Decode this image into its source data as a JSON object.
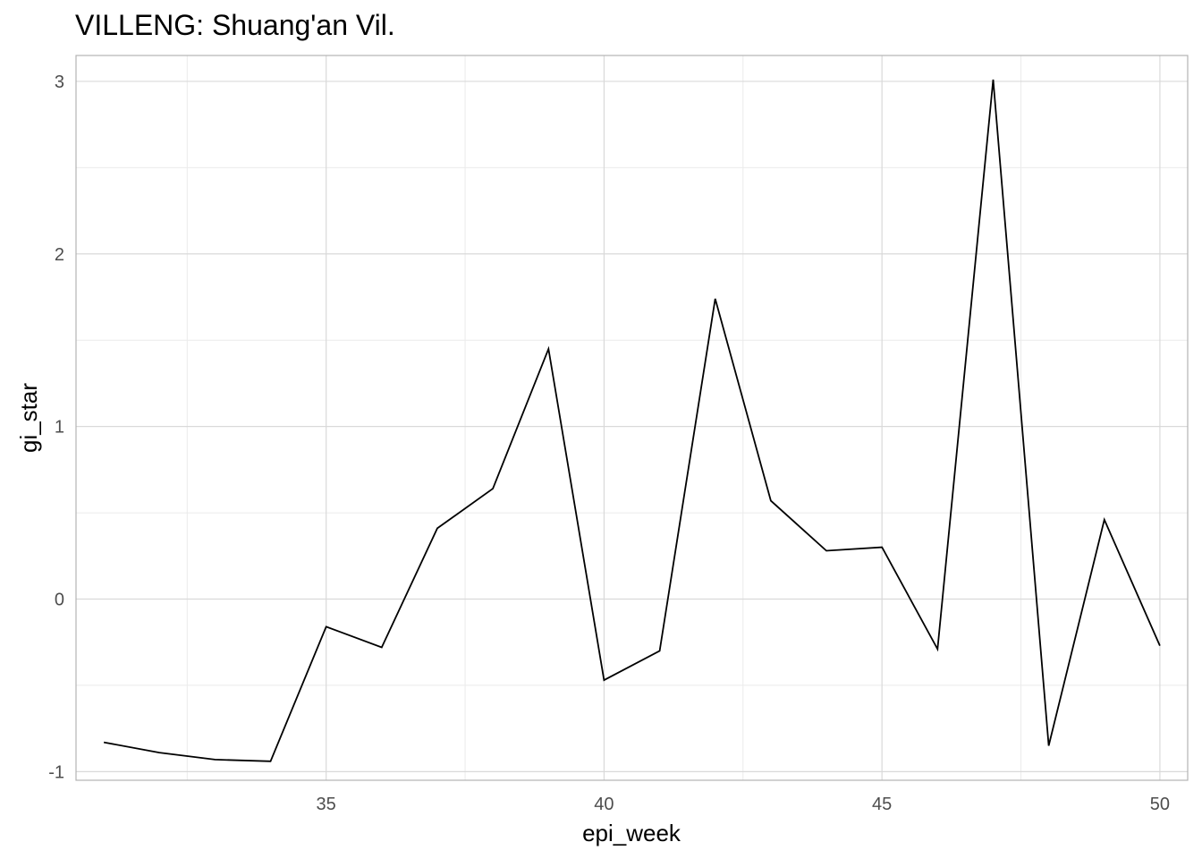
{
  "chart_data": {
    "type": "line",
    "title": "VILLENG: Shuang'an Vil.",
    "xlabel": "epi_week",
    "ylabel": "gi_star",
    "xlim": [
      30.5,
      50.5
    ],
    "ylim": [
      -1.05,
      3.15
    ],
    "x_ticks": [
      35,
      40,
      45,
      50
    ],
    "y_ticks": [
      -1,
      0,
      1,
      2,
      3
    ],
    "x_tick_labels": [
      "35",
      "40",
      "45",
      "50"
    ],
    "y_tick_labels": [
      "-1",
      "0",
      "1",
      "2",
      "3"
    ],
    "grid": true,
    "series": [
      {
        "color": "#000000",
        "x": [
          31,
          32,
          33,
          34,
          35,
          36,
          37,
          38,
          39,
          40,
          41,
          42,
          43,
          44,
          45,
          46,
          47,
          48,
          49,
          50
        ],
        "y": [
          -0.83,
          -0.89,
          -0.93,
          -0.94,
          -0.16,
          -0.28,
          0.41,
          0.64,
          1.45,
          -0.47,
          -0.3,
          1.74,
          0.57,
          0.28,
          0.3,
          -0.29,
          3.01,
          -0.85,
          0.46,
          -0.27
        ]
      }
    ],
    "colors": {
      "background": "#ffffff",
      "grid_major": "#d9d9d9",
      "grid_minor": "#ebebeb",
      "panel_border": "#b3b3b3",
      "line": "#000000"
    }
  }
}
